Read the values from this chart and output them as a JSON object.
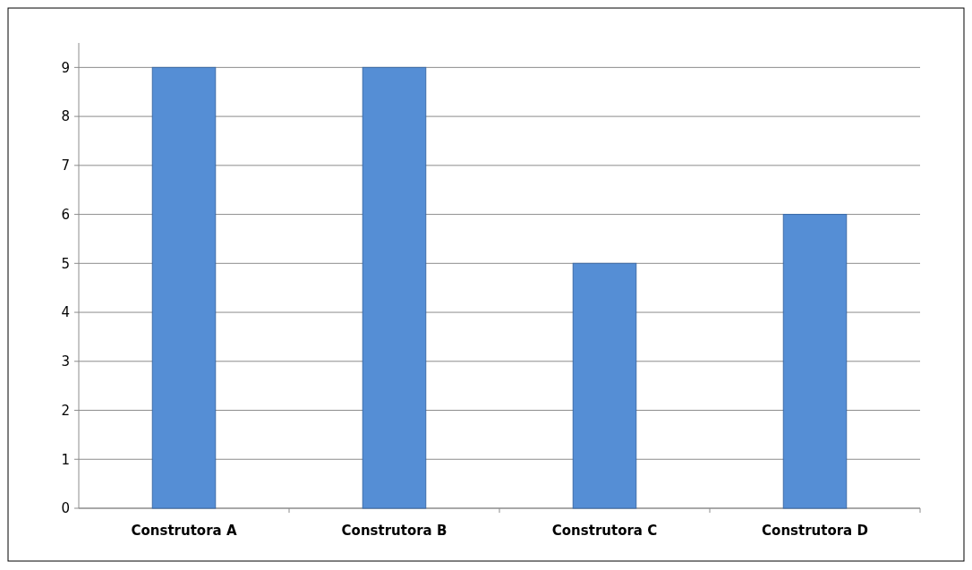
{
  "chart_data": {
    "type": "bar",
    "categories": [
      "Construtora A",
      "Construtora B",
      "Construtora C",
      "Construtora D"
    ],
    "values": [
      9,
      9,
      5,
      6
    ],
    "color": "#558ed5",
    "ylim": [
      0,
      9.5
    ],
    "yticks": [
      0,
      1,
      2,
      3,
      4,
      5,
      6,
      7,
      8,
      9
    ],
    "grid": "y"
  }
}
